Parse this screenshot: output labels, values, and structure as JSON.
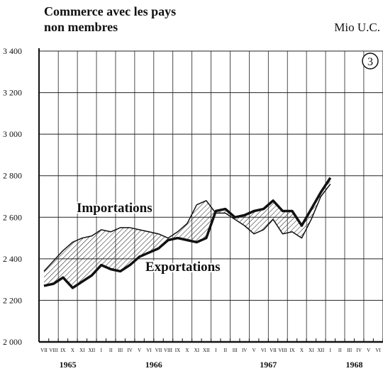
{
  "chart_data": {
    "type": "line",
    "title": "Commerce avec les pays",
    "title_line2": "non membres",
    "unit_label": "Mio U.C.",
    "chart_number": "3",
    "categories": [
      "VII",
      "VIII",
      "IX",
      "X",
      "XI",
      "XII",
      "I",
      "II",
      "III",
      "IV",
      "V",
      "VI",
      "VII",
      "VIII",
      "IX",
      "X",
      "XI",
      "XII",
      "I",
      "II",
      "III",
      "IV",
      "V",
      "VI",
      "VII",
      "VIII",
      "IX",
      "X",
      "XI",
      "XII",
      "I",
      "II",
      "III",
      "IV",
      "V",
      "VI"
    ],
    "year_labels": [
      "1965",
      "1966",
      "1967",
      "1968"
    ],
    "series": [
      {
        "name": "Importations",
        "color": "#111111",
        "values": [
          2340,
          2390,
          2440,
          2480,
          2500,
          2510,
          2540,
          2530,
          2550,
          2550,
          2540,
          2530,
          2520,
          2500,
          2530,
          2570,
          2660,
          2680,
          2620,
          2620,
          2590,
          2560,
          2520,
          2540,
          2590,
          2520,
          2530,
          2500,
          2590,
          2700,
          2760,
          null,
          null,
          null,
          null,
          null
        ]
      },
      {
        "name": "Exportations",
        "color": "#111111",
        "values": [
          2270,
          2280,
          2310,
          2260,
          2290,
          2320,
          2370,
          2350,
          2340,
          2370,
          2410,
          2430,
          2450,
          2490,
          2500,
          2490,
          2480,
          2500,
          2630,
          2640,
          2600,
          2610,
          2630,
          2640,
          2680,
          2630,
          2630,
          2560,
          2640,
          2720,
          2790,
          null,
          null,
          null,
          null,
          null
        ]
      }
    ],
    "ylim": [
      2000,
      3400
    ],
    "yticks": [
      {
        "value": 2000,
        "label": "2 000"
      },
      {
        "value": 2200,
        "label": "2 200"
      },
      {
        "value": 2400,
        "label": "2 400"
      },
      {
        "value": 2600,
        "label": "2 600"
      },
      {
        "value": 2800,
        "label": "2 800"
      },
      {
        "value": 3000,
        "label": "3 000"
      },
      {
        "value": 3200,
        "label": "3 200"
      },
      {
        "value": 3400,
        "label": "3 400"
      }
    ],
    "grid": true
  }
}
